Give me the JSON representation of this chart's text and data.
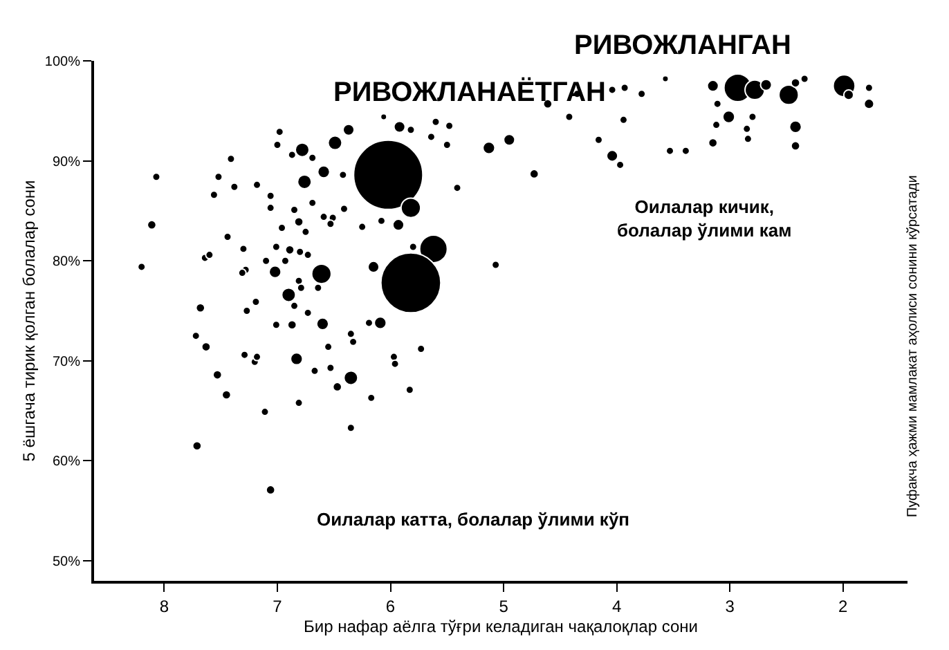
{
  "chart_data": {
    "type": "bubble",
    "xlabel": "Бир нафар аёлга тўғри келадиган чақалоқлар сони",
    "ylabel": "5 ёшгача тирик қолган болалар сони",
    "annotations": [
      "РИВОЖЛАНАЁТГАН",
      "РИВОЖЛАНГАН",
      "Оилалар катта, болалар ўлими кўп",
      "Оилалар кичик,\nболалар ўлими кам",
      "Пуфакча ҳажми мамлакат аҳолиси сонини кўрсатади"
    ],
    "x": [
      6.98,
      6.37,
      5.92,
      5.82,
      6.06,
      5.6,
      5.48,
      5.64,
      5.5,
      7.0,
      6.78,
      6.49,
      6.69,
      6.87,
      6.02,
      5.13,
      4.95,
      7.41,
      8.07,
      7.52,
      7.38,
      7.18,
      7.56,
      7.06,
      6.76,
      6.59,
      6.42,
      7.06,
      6.85,
      6.69,
      6.41,
      5.82,
      8.11,
      6.96,
      6.81,
      6.75,
      6.59,
      6.51,
      6.53,
      6.25,
      6.08,
      5.93,
      5.41,
      7.44,
      7.64,
      7.6,
      7.3,
      7.01,
      6.89,
      6.8,
      6.73,
      8.2,
      7.28,
      7.31,
      7.1,
      6.93,
      7.02,
      6.61,
      6.81,
      6.64,
      6.15,
      5.8,
      5.62,
      5.82,
      5.07,
      6.9,
      6.85,
      6.73,
      6.79,
      7.19,
      7.27,
      7.68,
      7.01,
      6.87,
      6.6,
      6.19,
      6.09,
      7.72,
      7.63,
      7.29,
      7.2,
      7.18,
      6.83,
      6.55,
      6.35,
      6.33,
      5.97,
      5.96,
      5.73,
      7.53,
      6.67,
      6.53,
      6.35,
      6.47,
      7.45,
      6.81,
      6.17,
      5.83,
      7.11,
      6.35,
      7.71,
      7.06,
      4.73,
      4.61,
      4.35,
      4.42,
      4.16,
      4.04,
      3.93,
      3.78,
      3.94,
      4.04,
      3.97,
      3.57,
      3.53,
      3.39,
      3.15,
      2.93,
      2.78,
      2.68,
      2.48,
      2.42,
      2.34,
      1.99,
      1.95,
      1.77,
      1.77,
      3.11,
      3.01,
      3.12,
      2.8,
      2.85,
      2.84,
      2.42,
      2.42,
      3.15
    ],
    "values": [
      92.9,
      93.1,
      93.4,
      93.1,
      94.4,
      93.9,
      93.5,
      92.4,
      91.6,
      91.6,
      91.1,
      91.8,
      90.3,
      90.6,
      88.6,
      91.3,
      92.1,
      90.2,
      88.4,
      88.4,
      87.4,
      87.6,
      86.6,
      86.5,
      87.9,
      88.9,
      88.6,
      85.3,
      85.1,
      85.8,
      85.2,
      85.3,
      83.6,
      83.3,
      83.9,
      82.9,
      84.4,
      84.3,
      83.7,
      83.4,
      84.0,
      83.6,
      87.3,
      82.4,
      80.3,
      80.6,
      81.2,
      81.4,
      81.1,
      80.9,
      80.6,
      79.4,
      79.1,
      78.8,
      80.0,
      80.0,
      78.9,
      78.7,
      78.0,
      77.3,
      79.4,
      81.4,
      81.2,
      77.8,
      79.6,
      76.6,
      75.5,
      74.8,
      77.3,
      75.9,
      75.0,
      75.3,
      73.6,
      73.6,
      73.7,
      73.8,
      73.8,
      72.5,
      71.4,
      70.6,
      69.9,
      70.4,
      70.2,
      71.4,
      72.7,
      71.9,
      70.4,
      69.7,
      71.2,
      68.6,
      69.0,
      69.3,
      68.3,
      67.4,
      66.6,
      65.8,
      66.3,
      67.1,
      64.9,
      63.3,
      61.5,
      57.1,
      88.7,
      95.7,
      96.7,
      94.4,
      92.1,
      97.1,
      97.3,
      96.7,
      94.1,
      90.5,
      89.6,
      98.2,
      91.0,
      91.0,
      97.5,
      97.3,
      97.1,
      97.6,
      96.6,
      97.8,
      98.2,
      97.5,
      96.6,
      97.3,
      95.7,
      95.7,
      94.4,
      93.6,
      94.4,
      93.2,
      92.2,
      93.4,
      91.5,
      91.8
    ],
    "sizes": [
      0.012,
      0.026,
      0.026,
      0.012,
      0.008,
      0.012,
      0.012,
      0.012,
      0.012,
      0.012,
      0.04,
      0.04,
      0.012,
      0.012,
      1,
      0.03,
      0.026,
      0.012,
      0.012,
      0.012,
      0.012,
      0.012,
      0.012,
      0.012,
      0.04,
      0.03,
      0.012,
      0.012,
      0.012,
      0.012,
      0.012,
      0.08,
      0.016,
      0.012,
      0.016,
      0.012,
      0.012,
      0.012,
      0.012,
      0.012,
      0.012,
      0.026,
      0.012,
      0.012,
      0.012,
      0.012,
      0.012,
      0.012,
      0.016,
      0.012,
      0.012,
      0.012,
      0.012,
      0.012,
      0.012,
      0.012,
      0.03,
      0.08,
      0.012,
      0.012,
      0.026,
      0.012,
      0.16,
      0.75,
      0.012,
      0.04,
      0.012,
      0.012,
      0.012,
      0.012,
      0.012,
      0.016,
      0.012,
      0.016,
      0.03,
      0.012,
      0.03,
      0.012,
      0.016,
      0.012,
      0.012,
      0.012,
      0.03,
      0.012,
      0.012,
      0.012,
      0.012,
      0.012,
      0.012,
      0.016,
      0.012,
      0.012,
      0.04,
      0.016,
      0.016,
      0.012,
      0.012,
      0.012,
      0.012,
      0.012,
      0.016,
      0.016,
      0.016,
      0.016,
      0.012,
      0.012,
      0.012,
      0.012,
      0.012,
      0.012,
      0.012,
      0.026,
      0.012,
      0.008,
      0.012,
      0.012,
      0.026,
      0.16,
      0.08,
      0.026,
      0.08,
      0.016,
      0.012,
      0.1,
      0.02,
      0.012,
      0.02,
      0.012,
      0.03,
      0.012,
      0.012,
      0.012,
      0.012,
      0.03,
      0.016,
      0.016
    ],
    "color": "#000000",
    "xlim": [
      8.62,
      1.43
    ],
    "ylim": [
      48,
      100
    ],
    "xticks": [
      8,
      7,
      6,
      5,
      4,
      3,
      2
    ],
    "yticks": [
      {
        "value": 50,
        "label": "50%"
      },
      {
        "value": 60,
        "label": "60%"
      },
      {
        "value": 70,
        "label": "70%"
      },
      {
        "value": 80,
        "label": "80%"
      },
      {
        "value": 90,
        "label": "90%"
      },
      {
        "value": 100,
        "label": "100%"
      }
    ],
    "marker": "circle"
  }
}
